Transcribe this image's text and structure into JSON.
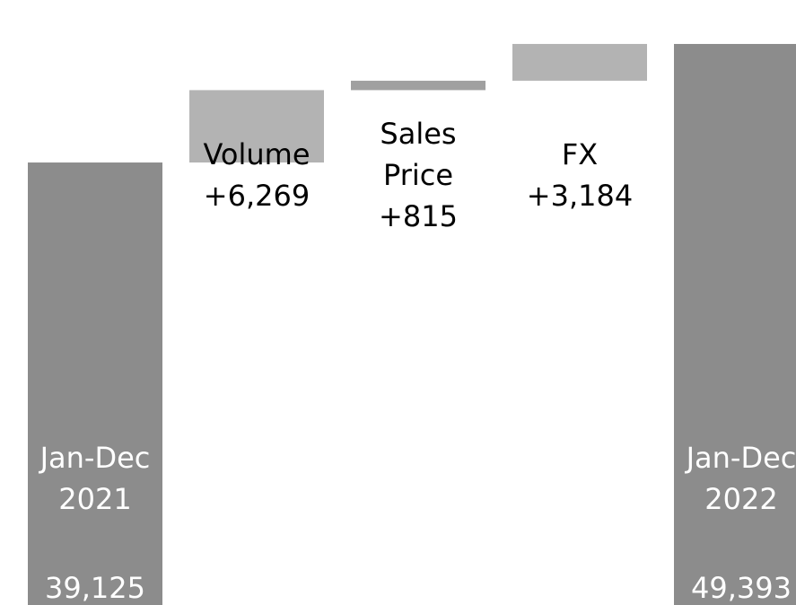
{
  "chart_data": {
    "type": "waterfall",
    "categories": [
      "Jan-Dec 2021",
      "Volume",
      "Sales Price",
      "FX",
      "Jan-Dec 2022"
    ],
    "values": [
      39125,
      6269,
      815,
      3184,
      49393
    ],
    "value_labels": [
      "39,125",
      "+6,269",
      "+815",
      "+3,184",
      "49,393"
    ],
    "totals": [
      true,
      false,
      false,
      false,
      true
    ],
    "colors": [
      "#8c8c8c",
      "#b3b3b3",
      "#a0a0a0",
      "#b3b3b3",
      "#8c8c8c"
    ],
    "ylim": [
      800,
      53200
    ]
  }
}
